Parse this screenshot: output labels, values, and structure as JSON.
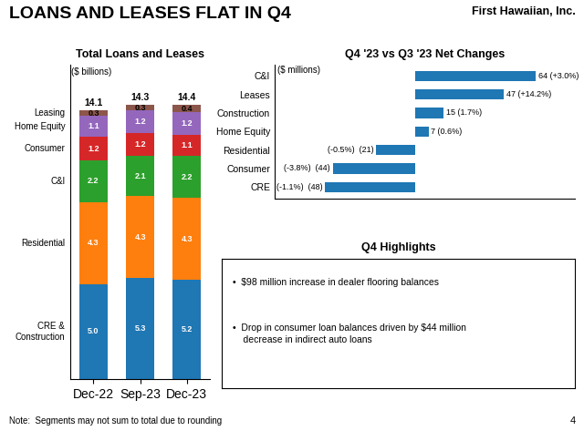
{
  "title": "LOANS AND LEASES FLAT IN Q4",
  "company": "First Hawaiian, Inc.",
  "note": "Note:  Segments may not sum to total due to rounding",
  "page_number": "4",
  "highlights": {
    "title": "Q4 Highlights",
    "bullets": [
      "•  $98 million increase in dealer flooring balances",
      "•  Drop in consumer loan balances driven by $44 million\n    decrease in indirect auto loans"
    ]
  },
  "chart_data": [
    {
      "type": "bar",
      "stacked": true,
      "title": "Total Loans and Leases",
      "ylabel": "($ billions)",
      "categories": [
        "Dec-22",
        "Sep-23",
        "Dec-23"
      ],
      "series": [
        {
          "name": "CRE &\nConstruction",
          "values": [
            5.0,
            5.3,
            5.2
          ]
        },
        {
          "name": "Residential",
          "values": [
            4.3,
            4.3,
            4.3
          ]
        },
        {
          "name": "C&I",
          "values": [
            2.2,
            2.1,
            2.2
          ]
        },
        {
          "name": "Consumer",
          "values": [
            1.2,
            1.2,
            1.1
          ]
        },
        {
          "name": "Home Equity",
          "values": [
            1.1,
            1.2,
            1.2
          ]
        },
        {
          "name": "Leasing",
          "values": [
            0.3,
            0.3,
            0.4
          ]
        }
      ],
      "totals": [
        14.1,
        14.3,
        14.4
      ],
      "ylim": [
        0,
        16.5
      ],
      "data_labels": true,
      "tick_labels": "x"
    },
    {
      "type": "bar",
      "orientation": "horizontal",
      "title": "Q4 '23 vs Q3 '23 Net Changes",
      "xlabel": "($ millions)",
      "categories": [
        "C&I",
        "Leases",
        "Construction",
        "Home Equity",
        "Residential",
        "Consumer",
        "CRE"
      ],
      "values": [
        64,
        47,
        15,
        7,
        -21,
        -44,
        -48
      ],
      "value_labels": [
        "64 (+3.0%)",
        "47 (+14.2%)",
        "15 (1.7%)",
        "7 (0.6%)",
        "(-0.5%)  (21)",
        "(-3.8%)  (44)",
        "(-1.1%)  (48)"
      ],
      "xlim": [
        -75,
        85
      ],
      "data_labels": true,
      "tick_labels": "y"
    }
  ]
}
